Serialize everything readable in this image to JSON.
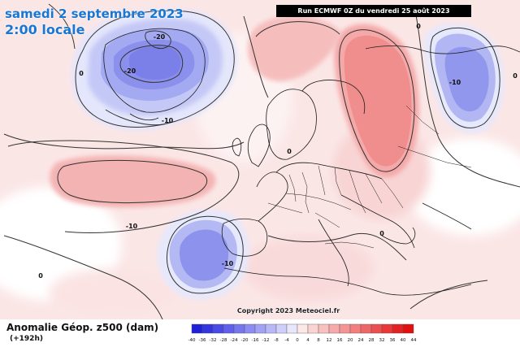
{
  "header": {
    "valid_date": "samedi 2 septembre 2023",
    "valid_time": "2:00 locale",
    "run_info": "Run ECMWF 0Z du vendredi 25 août 2023"
  },
  "footer": {
    "title": "Anomalie Géop. z500 (dam)",
    "lead_time": "(+192h)",
    "copyright": "Copyright 2023 Meteociel.fr"
  },
  "legend": {
    "values": [
      "-40",
      "-36",
      "-32",
      "-28",
      "-24",
      "-20",
      "-16",
      "-12",
      "-8",
      "-4",
      "0",
      "4",
      "8",
      "12",
      "16",
      "20",
      "24",
      "28",
      "32",
      "36",
      "40",
      "44"
    ],
    "colors": [
      "#2020d8",
      "#3535e0",
      "#4a4ae6",
      "#6060ec",
      "#7676ef",
      "#8c8cf2",
      "#a2a2f5",
      "#b8b8f8",
      "#cfcffa",
      "#e6e6fd",
      "#fde8e8",
      "#fbd3d3",
      "#f9c0c0",
      "#f7aaaa",
      "#f59494",
      "#f27e7e",
      "#ef6666",
      "#ec4f4f",
      "#e83838",
      "#e42222",
      "#e01010"
    ]
  },
  "map_labels": [
    {
      "id": "greenland-center",
      "text": "-20"
    },
    {
      "id": "greenland-west",
      "text": "-20"
    },
    {
      "id": "greenland-south",
      "text": "-10"
    },
    {
      "id": "west-atlantic",
      "text": "0"
    },
    {
      "id": "mid-atlantic-south",
      "text": "-10"
    },
    {
      "id": "iberia-west",
      "text": "-10"
    },
    {
      "id": "sw-corner",
      "text": "0"
    },
    {
      "id": "scandinavia",
      "text": "0"
    },
    {
      "id": "balkans",
      "text": "0"
    },
    {
      "id": "ural",
      "text": "-10"
    },
    {
      "id": "east-edge",
      "text": "0"
    },
    {
      "id": "russia-north",
      "text": "0"
    }
  ]
}
